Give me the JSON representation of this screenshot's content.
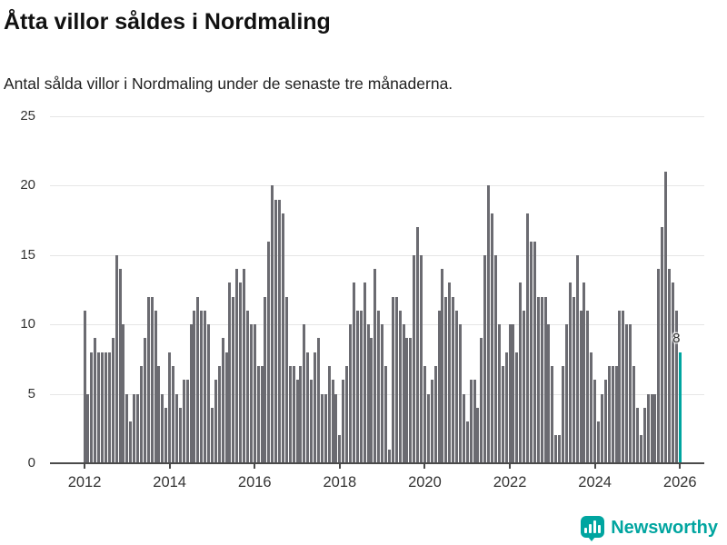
{
  "header": {
    "title": "Åtta villor såldes i Nordmaling",
    "subtitle": "Antal sålda villor i Nordmaling under de senaste tre månaderna."
  },
  "chart_data": {
    "type": "bar",
    "title": "Åtta villor såldes i Nordmaling",
    "subtitle": "Antal sålda villor i Nordmaling under de senaste tre månaderna.",
    "xlabel": "",
    "ylabel": "",
    "ylim": [
      0,
      25
    ],
    "grid": true,
    "yticks": [
      0,
      5,
      10,
      15,
      20,
      25
    ],
    "xtick_labels": [
      "2012",
      "2014",
      "2016",
      "2018",
      "2020",
      "2022",
      "2024",
      "2026"
    ],
    "xtick_indices": [
      0,
      24,
      48,
      72,
      96,
      120,
      144,
      168
    ],
    "x_unit": "month",
    "values": [
      11,
      5,
      8,
      9,
      8,
      8,
      8,
      8,
      9,
      15,
      14,
      10,
      5,
      3,
      5,
      5,
      7,
      9,
      12,
      12,
      11,
      7,
      5,
      4,
      8,
      7,
      5,
      4,
      6,
      6,
      10,
      11,
      12,
      11,
      11,
      10,
      4,
      6,
      7,
      9,
      8,
      13,
      12,
      14,
      13,
      14,
      11,
      10,
      10,
      7,
      7,
      12,
      16,
      20,
      19,
      19,
      18,
      12,
      7,
      7,
      6,
      7,
      10,
      8,
      6,
      8,
      9,
      5,
      5,
      7,
      6,
      5,
      2,
      6,
      7,
      10,
      13,
      11,
      11,
      13,
      10,
      9,
      14,
      11,
      10,
      7,
      1,
      12,
      12,
      11,
      10,
      9,
      9,
      15,
      17,
      15,
      7,
      5,
      6,
      7,
      11,
      14,
      12,
      13,
      12,
      11,
      10,
      5,
      3,
      6,
      6,
      4,
      9,
      15,
      20,
      18,
      15,
      10,
      7,
      8,
      10,
      10,
      8,
      13,
      11,
      18,
      16,
      16,
      12,
      12,
      12,
      10,
      7,
      2,
      2,
      7,
      10,
      13,
      12,
      15,
      11,
      13,
      11,
      8,
      6,
      3,
      5,
      6,
      7,
      7,
      7,
      11,
      11,
      10,
      10,
      7,
      4,
      2,
      4,
      5,
      5,
      5,
      14,
      17,
      21,
      14,
      13,
      11,
      8
    ],
    "highlight": {
      "index": 168,
      "value": 8,
      "label": "8"
    },
    "legend": null
  },
  "annotation": {
    "last_value_label": "8"
  },
  "footer": {
    "brand": "Newsworthy"
  },
  "colors": {
    "bar": "#6b6b71",
    "highlight": "#00a5a0",
    "grid": "#e6e6e6",
    "axis": "#4a4a4a",
    "tick_text": "#333333",
    "title_text": "#111111",
    "subtitle_text": "#1f1f1f",
    "brand": "#00a5a0"
  }
}
